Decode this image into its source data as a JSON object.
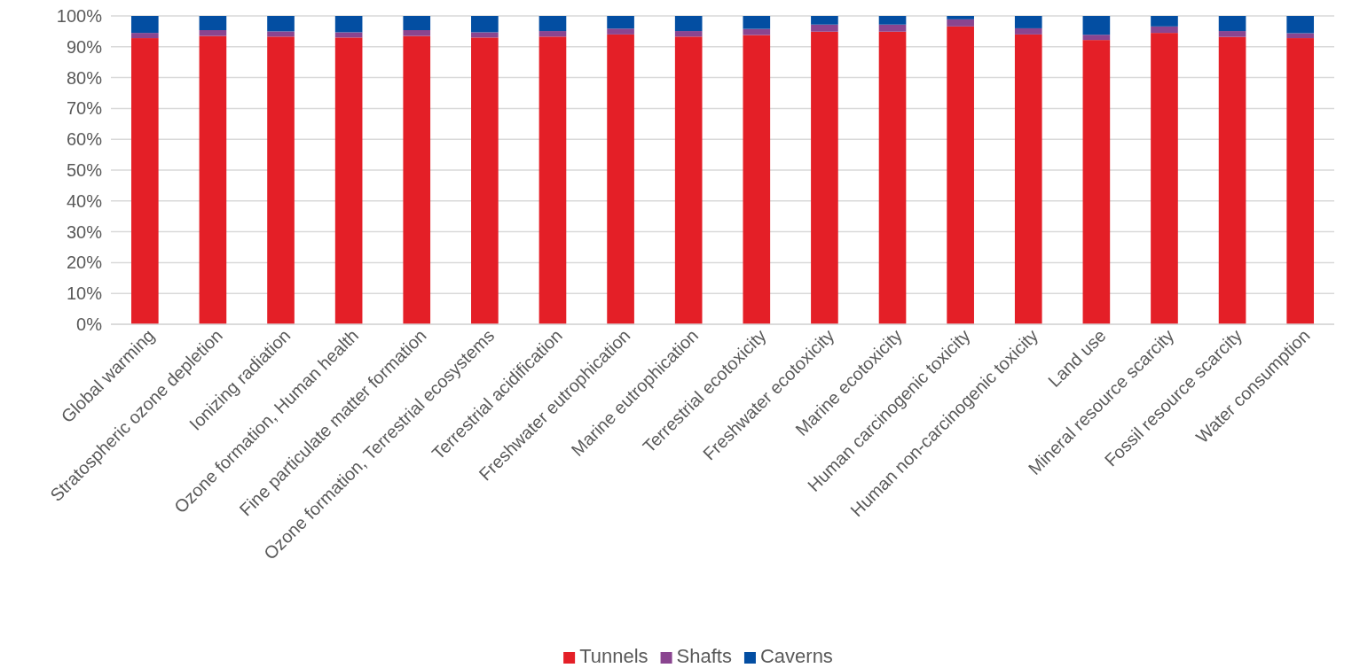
{
  "chart_data": {
    "type": "bar",
    "stacked": true,
    "categories": [
      "Global warming",
      "Stratospheric ozone depletion",
      "Ionizing radiation",
      "Ozone formation, Human health",
      "Fine particulate matter formation",
      "Ozone formation, Terrestrial ecosystems",
      "Terrestrial acidification",
      "Freshwater eutrophication",
      "Marine eutrophication",
      "Terrestrial ecotoxicity",
      "Freshwater ecotoxicity",
      "Marine ecotoxicity",
      "Human carcinogenic toxicity",
      "Human non-carcinogenic toxicity",
      "Land use",
      "Mineral resource scarcity",
      "Fossil resource scarcity",
      "Water consumption"
    ],
    "series": [
      {
        "name": "Tunnels",
        "color": "#e41f27",
        "values": [
          92.8,
          93.5,
          93.3,
          93.0,
          93.5,
          93.0,
          93.3,
          94.0,
          93.3,
          93.8,
          94.9,
          94.9,
          96.6,
          94.0,
          92.2,
          94.5,
          93.2,
          92.8
        ]
      },
      {
        "name": "Shafts",
        "color": "#8a4590",
        "values": [
          1.7,
          1.9,
          1.7,
          1.7,
          1.9,
          1.7,
          1.8,
          1.9,
          1.8,
          2.0,
          2.3,
          2.3,
          2.3,
          2.0,
          1.7,
          2.1,
          1.9,
          1.6
        ]
      },
      {
        "name": "Caverns",
        "color": "#034ea2",
        "values": [
          5.5,
          4.6,
          5.0,
          5.3,
          4.6,
          5.3,
          4.9,
          4.1,
          4.9,
          4.2,
          2.8,
          2.8,
          1.1,
          4.0,
          6.1,
          3.4,
          4.9,
          5.6
        ]
      }
    ],
    "ylim": [
      0,
      100
    ],
    "yticks": [
      {
        "value": 0,
        "label": "0%"
      },
      {
        "value": 10,
        "label": "10%"
      },
      {
        "value": 20,
        "label": "20%"
      },
      {
        "value": 30,
        "label": "30%"
      },
      {
        "value": 40,
        "label": "40%"
      },
      {
        "value": 50,
        "label": "50%"
      },
      {
        "value": 60,
        "label": "60%"
      },
      {
        "value": 70,
        "label": "70%"
      },
      {
        "value": 80,
        "label": "80%"
      },
      {
        "value": 90,
        "label": "90%"
      },
      {
        "value": 100,
        "label": "100%"
      }
    ],
    "grid": "y",
    "legend": "bottom"
  }
}
